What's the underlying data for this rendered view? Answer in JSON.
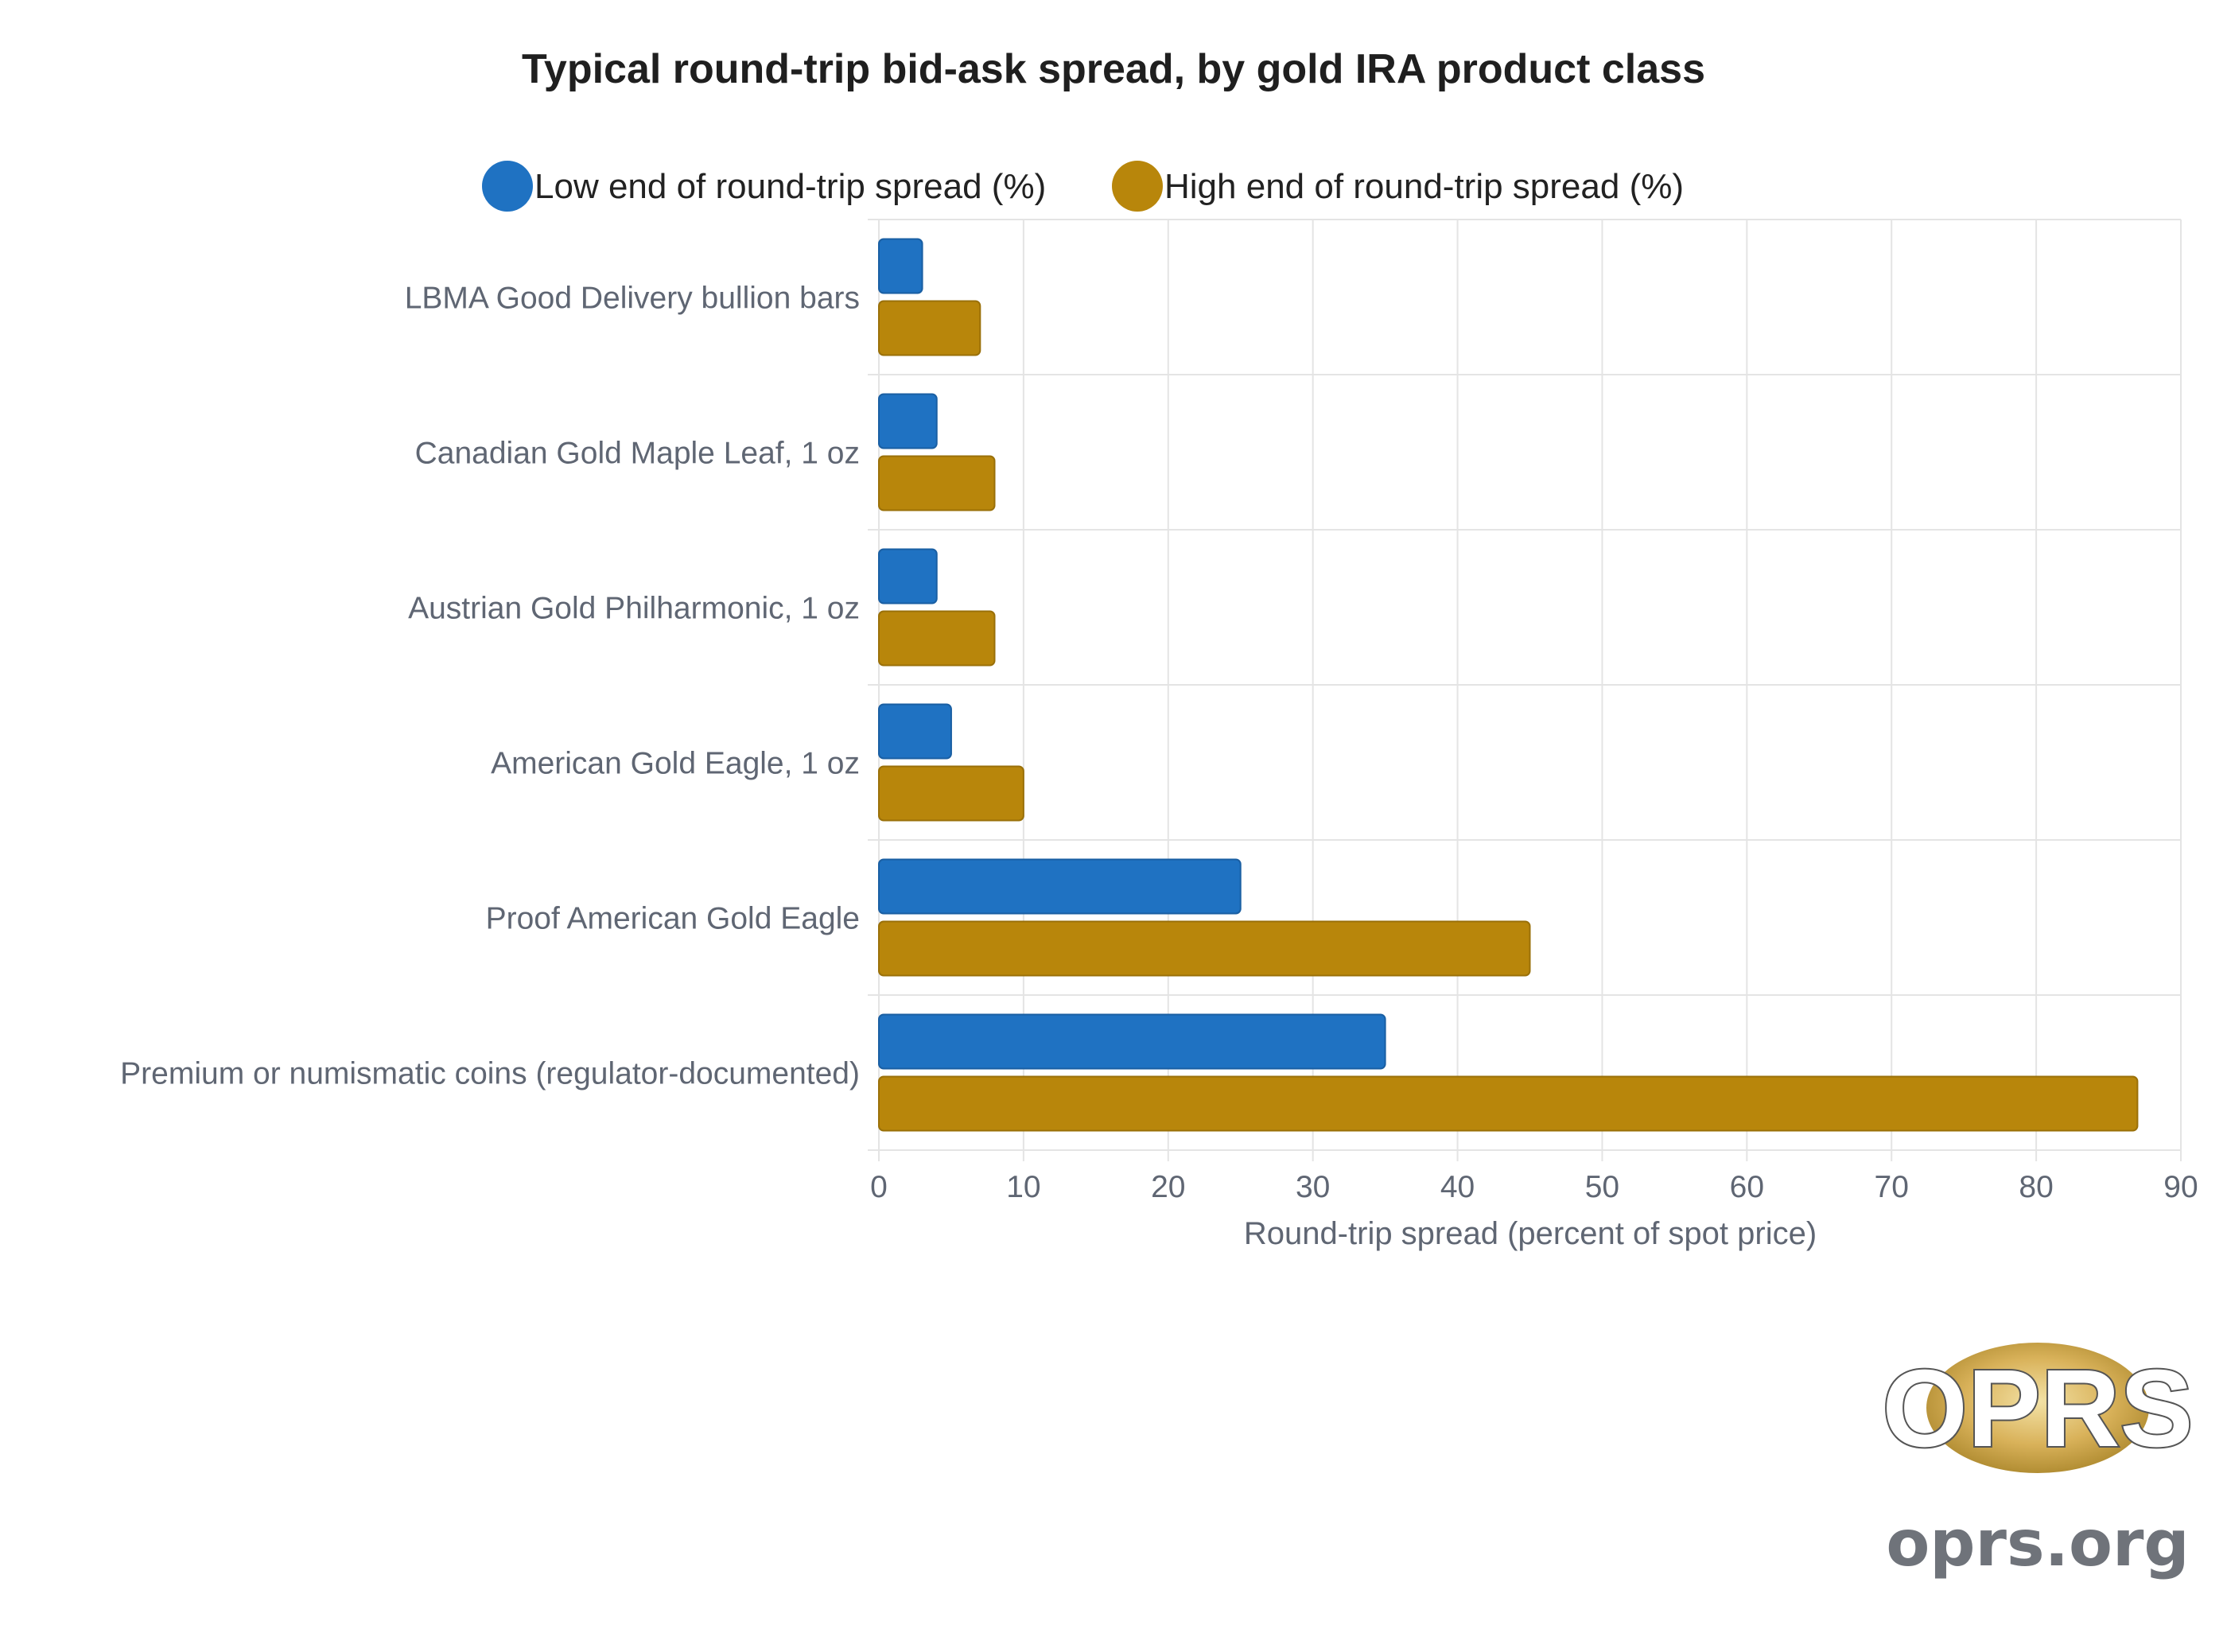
{
  "chart_data": {
    "type": "bar",
    "orientation": "horizontal",
    "title": "Typical round-trip bid-ask spread, by gold IRA product class",
    "xlabel": "Round-trip spread (percent of spot price)",
    "ylabel": "",
    "xlim": [
      0,
      90
    ],
    "x_ticks": [
      "0",
      "10",
      "20",
      "30",
      "40",
      "50",
      "60",
      "70",
      "80",
      "90"
    ],
    "grid": true,
    "legend_position": "top",
    "categories": [
      "LBMA Good Delivery bullion bars",
      "Canadian Gold Maple Leaf, 1 oz",
      "Austrian Gold Philharmonic, 1 oz",
      "American Gold Eagle, 1 oz",
      "Proof American Gold Eagle",
      "Premium or numismatic coins (regulator-documented)"
    ],
    "series": [
      {
        "name": "Low end of round-trip spread (%)",
        "color": "#1f72c2",
        "values": [
          3,
          4,
          4,
          5,
          25,
          35
        ]
      },
      {
        "name": "High end of round-trip spread (%)",
        "color": "#b8860b",
        "values": [
          7,
          8,
          8,
          10,
          45,
          87
        ]
      }
    ]
  },
  "logo": {
    "wordmark": "OPRS",
    "site": "oprs.org"
  }
}
